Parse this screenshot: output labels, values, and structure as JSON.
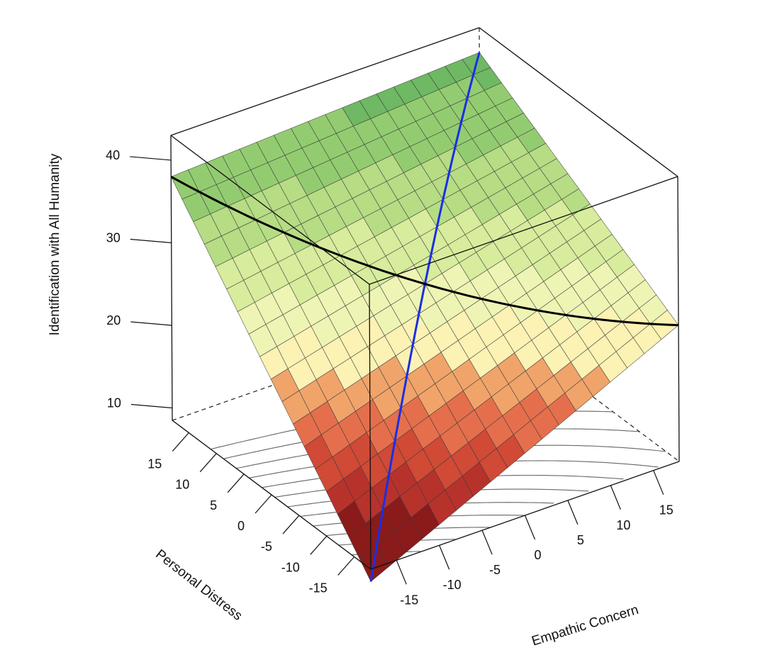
{
  "chart_data": {
    "type": "surface3d",
    "x_axis": {
      "label": "Empathic Concern",
      "ticks": [
        -15,
        -10,
        -5,
        0,
        5,
        10,
        15
      ],
      "range": [
        -18,
        18
      ]
    },
    "y_axis": {
      "label": "Personal Distress",
      "ticks": [
        -15,
        -10,
        -5,
        0,
        5,
        10,
        15
      ],
      "range": [
        -18,
        18
      ]
    },
    "z_axis": {
      "label": "Identification with All Humanity",
      "ticks": [
        10,
        20,
        30,
        40
      ],
      "range": [
        8.5,
        43
      ]
    },
    "surface": {
      "grid_points_per_side": 19,
      "corner_values": [
        {
          "empathic_concern": -18,
          "personal_distress": -18,
          "value": 7
        },
        {
          "empathic_concern": 18,
          "personal_distress": -18,
          "value": 25
        },
        {
          "empathic_concern": -18,
          "personal_distress": 18,
          "value": 38
        },
        {
          "empathic_concern": 18,
          "personal_distress": 18,
          "value": 40
        }
      ],
      "color_bands": [
        {
          "min": 0,
          "max": 12,
          "color": "#8b1a1a"
        },
        {
          "min": 12,
          "max": 14.5,
          "color": "#b8322c"
        },
        {
          "min": 14.5,
          "max": 17,
          "color": "#d04a36"
        },
        {
          "min": 17,
          "max": 19.5,
          "color": "#e56f4c"
        },
        {
          "min": 19.5,
          "max": 22,
          "color": "#f0a46a"
        },
        {
          "min": 22,
          "max": 25,
          "color": "#fbf2b4"
        },
        {
          "min": 25,
          "max": 28,
          "color": "#eef4b4"
        },
        {
          "min": 28,
          "max": 31.5,
          "color": "#d7ec9c"
        },
        {
          "min": 31.5,
          "max": 35,
          "color": "#b6dc84"
        },
        {
          "min": 35,
          "max": 38.5,
          "color": "#93cc70"
        },
        {
          "min": 38.5,
          "max": 50,
          "color": "#6fb864"
        }
      ]
    },
    "highlight_lines": [
      {
        "color": "#1a2ee8",
        "along": "empathic_concern = personal_distress"
      },
      {
        "color": "#000000",
        "along": "empathic_concern = -personal_distress"
      }
    ],
    "floor_contours": true,
    "box": true
  }
}
